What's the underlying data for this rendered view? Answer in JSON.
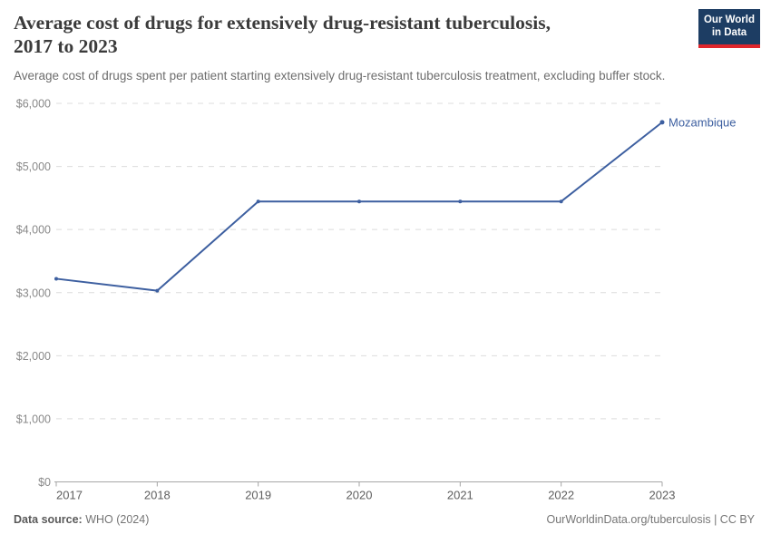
{
  "header": {
    "title_lines": [
      "Average cost of drugs for extensively drug-resistant tuberculosis,",
      "2017 to 2023"
    ],
    "subtitle": "Average cost of drugs spent per patient starting extensively drug-resistant tuberculosis treatment, excluding buffer stock.",
    "logo": {
      "line1": "Our World",
      "line2": "in Data",
      "bg_color": "#1d3d63",
      "accent_color": "#e0262c"
    }
  },
  "chart_data": {
    "type": "line",
    "title": "Average cost of drugs for extensively drug-resistant tuberculosis, 2017 to 2023",
    "x": [
      2017,
      2018,
      2019,
      2020,
      2021,
      2022,
      2023
    ],
    "series": [
      {
        "name": "Mozambique",
        "values": [
          3220,
          3030,
          4445,
          4445,
          4445,
          4445,
          5700
        ],
        "color": "#3d5fa0"
      }
    ],
    "xlabel": "",
    "ylabel": "",
    "ylim": [
      0,
      6000
    ],
    "yticks": [
      0,
      1000,
      2000,
      3000,
      4000,
      5000,
      6000
    ],
    "ytick_prefix": "$",
    "grid": true,
    "gridline_color": "#dcdcdc",
    "axis_color": "#a6a6a6",
    "legend": "end-of-line-label"
  },
  "footer": {
    "source_label": "Data source:",
    "source_value": "WHO (2024)",
    "link": "OurWorldinData.org/tuberculosis | CC BY"
  }
}
